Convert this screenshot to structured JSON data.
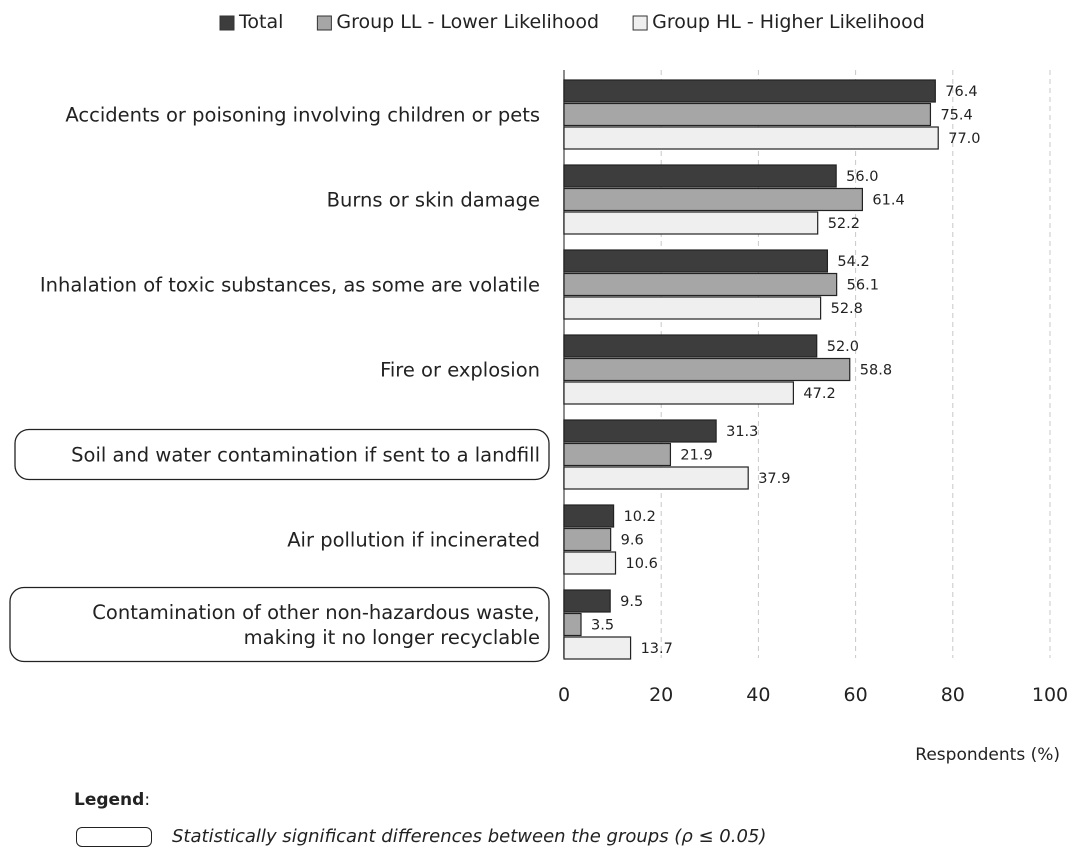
{
  "chart_data": {
    "type": "bar",
    "orientation": "horizontal",
    "categories": [
      "Accidents or poisoning involving children or pets",
      "Burns or skin damage",
      "Inhalation of toxic substances, as some are volatile",
      "Fire or explosion",
      "Soil and water contamination if sent to a landfill",
      "Air pollution if incinerated",
      "Contamination of other non-hazardous waste, making it no longer recyclable"
    ],
    "category_lines": [
      [
        "Accidents or poisoning involving children or pets"
      ],
      [
        "Burns or skin damage"
      ],
      [
        "Inhalation of toxic substances, as some are volatile"
      ],
      [
        "Fire or explosion"
      ],
      [
        "Soil and water contamination if sent to a landfill"
      ],
      [
        "Air pollution if incinerated"
      ],
      [
        "Contamination of other non-hazardous waste,",
        "making it no longer recyclable"
      ]
    ],
    "significant": [
      false,
      false,
      false,
      false,
      true,
      false,
      true
    ],
    "series": [
      {
        "name": "Total",
        "color": "#3d3d3d",
        "values": [
          76.4,
          56.0,
          54.2,
          52.0,
          31.3,
          10.2,
          9.5
        ],
        "labels": [
          "76.4",
          "56.0",
          "54.2",
          "52.0",
          "31.3",
          "10.2",
          "9.5"
        ]
      },
      {
        "name": "Group LL - Lower Likelihood",
        "color": "#a6a6a6",
        "values": [
          75.4,
          61.4,
          56.1,
          58.8,
          21.9,
          9.6,
          3.5
        ],
        "labels": [
          "75.4",
          "61.4",
          "56.1",
          "58.8",
          "21.9",
          "9.6",
          "3.5"
        ]
      },
      {
        "name": "Group HL - Higher Likelihood",
        "color": "#efefef",
        "values": [
          77.0,
          52.2,
          52.8,
          47.2,
          37.9,
          10.6,
          13.7
        ],
        "labels": [
          "77.0",
          "52.2",
          "52.8",
          "47.2",
          "37.9",
          "10.6",
          "13.7"
        ]
      }
    ],
    "xlim": [
      0,
      100
    ],
    "xticks": [
      "0",
      "20",
      "40",
      "60",
      "80",
      "100"
    ],
    "xlabel": "Respondents (%)",
    "grid": "vertical dashed",
    "legend_position": "top"
  },
  "legend": {
    "title": "Legend",
    "colon": ":",
    "significance_text": "Statistically significant differences between the groups (ρ ≤ 0.05)"
  }
}
